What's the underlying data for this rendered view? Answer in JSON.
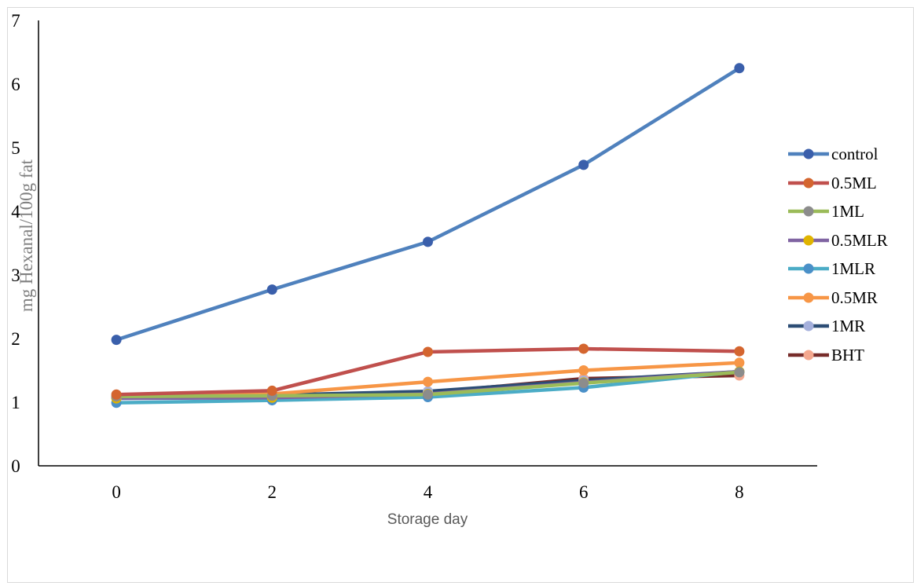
{
  "chart_data": {
    "type": "line",
    "title": "",
    "xlabel": "Storage day",
    "ylabel": "mg Hexanal/100g fat",
    "x": [
      0,
      2,
      4,
      6,
      8
    ],
    "xlim": [
      -1,
      9
    ],
    "ylim": [
      0,
      7
    ],
    "y_ticks": [
      0,
      1,
      2,
      3,
      4,
      5,
      6,
      7
    ],
    "grid": false,
    "legend_position": "right",
    "series": [
      {
        "name": "control",
        "line_color": "#4f81bd",
        "marker_color": "#3a5fab",
        "values": [
          1.98,
          2.77,
          3.52,
          4.73,
          6.25
        ]
      },
      {
        "name": "0.5ML",
        "line_color": "#c0504d",
        "marker_color": "#d4652f",
        "values": [
          1.12,
          1.18,
          1.79,
          1.84,
          1.8
        ]
      },
      {
        "name": "1ML",
        "line_color": "#9bbb59",
        "marker_color": "#8c8c8c",
        "values": [
          1.09,
          1.1,
          1.12,
          1.3,
          1.47
        ]
      },
      {
        "name": "0.5MLR",
        "line_color": "#8064a2",
        "marker_color": "#e0b400",
        "values": [
          1.06,
          1.07,
          1.13,
          1.31,
          1.48
        ]
      },
      {
        "name": "1MLR",
        "line_color": "#4bacc6",
        "marker_color": "#4a90c8",
        "values": [
          0.99,
          1.03,
          1.08,
          1.23,
          1.48
        ]
      },
      {
        "name": "0.5MR",
        "line_color": "#f79646",
        "marker_color": "#f79646",
        "values": [
          1.08,
          1.13,
          1.32,
          1.5,
          1.62
        ]
      },
      {
        "name": "1MR",
        "line_color": "#2c4d75",
        "marker_color": "#a5b0dc",
        "values": [
          1.08,
          1.11,
          1.17,
          1.34,
          1.48
        ]
      },
      {
        "name": "BHT",
        "line_color": "#772c2a",
        "marker_color": "#f4a88f",
        "values": [
          1.07,
          1.1,
          1.15,
          1.37,
          1.42
        ]
      }
    ]
  }
}
